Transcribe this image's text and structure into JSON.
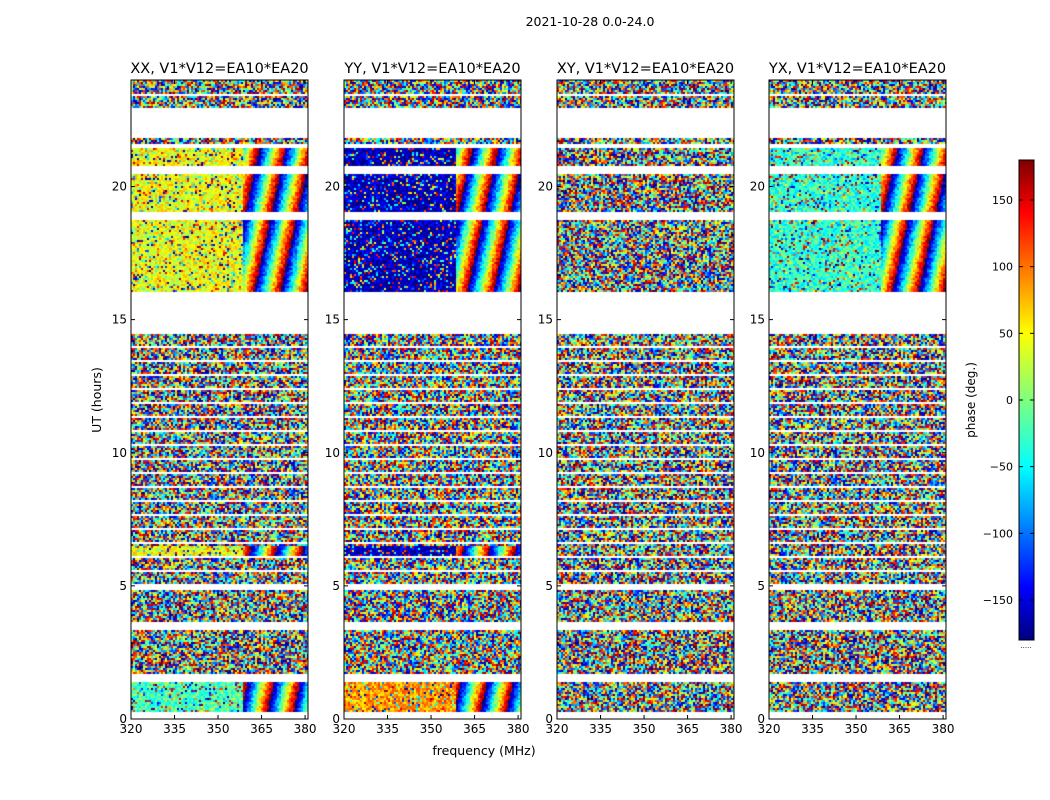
{
  "chart_data": {
    "type": "heatmap",
    "suptitle": "2021-10-28 0.0-24.0",
    "xlabel": "frequency (MHz)",
    "ylabel": "UT (hours)",
    "xlim": [
      320,
      381
    ],
    "ylim": [
      0,
      24
    ],
    "xticks": [
      "320",
      "335",
      "350",
      "365",
      "380"
    ],
    "xtick_values": [
      320,
      335,
      350,
      365,
      380
    ],
    "yticks": [
      "0",
      "5",
      "10",
      "15",
      "20"
    ],
    "ytick_values": [
      0,
      5,
      10,
      15,
      20
    ],
    "colorbar": {
      "label": "phase (deg.)",
      "ticks": [
        "−150",
        "−100",
        "−50",
        "0",
        "50",
        "100",
        "150"
      ],
      "tick_values": [
        -150,
        -100,
        -50,
        0,
        50,
        100,
        150
      ],
      "range": [
        -180,
        180
      ],
      "colormap": "jet",
      "footer": "....."
    },
    "panels": [
      {
        "title": "XX, V1*V12=EA10*EA20",
        "dominant_phase_16_21h": 40,
        "dominant_phase_6h": 40,
        "dominant_phase_0_1h": -20
      },
      {
        "title": "YY, V1*V12=EA10*EA20",
        "dominant_phase_16_21h": -160,
        "dominant_phase_6h": -160,
        "dominant_phase_0_1h": 80
      },
      {
        "title": "XY, V1*V12=EA10*EA20",
        "dominant_phase_16_21h": null,
        "dominant_phase_6h": null,
        "dominant_phase_0_1h": null
      },
      {
        "title": "YX, V1*V12=EA10*EA20",
        "dominant_phase_16_21h": -30,
        "dominant_phase_6h": null,
        "dominant_phase_0_1h": null
      }
    ],
    "flagged_ut_ranges": [
      [
        0.0,
        0.3
      ],
      [
        1.4,
        1.7
      ],
      [
        3.4,
        3.7
      ],
      [
        4.9,
        5.0
      ],
      [
        6.6,
        6.7
      ],
      [
        14.5,
        14.7
      ],
      [
        14.7,
        16.1
      ],
      [
        18.8,
        19.1
      ],
      [
        20.5,
        20.8
      ],
      [
        21.5,
        21.6
      ],
      [
        21.9,
        22.9
      ],
      [
        23.4,
        23.5
      ]
    ],
    "banded_ut_ranges": [
      [
        5.0,
        6.5
      ],
      [
        6.8,
        14.4
      ],
      [
        21.6,
        21.9
      ],
      [
        22.9,
        24.0
      ]
    ]
  }
}
